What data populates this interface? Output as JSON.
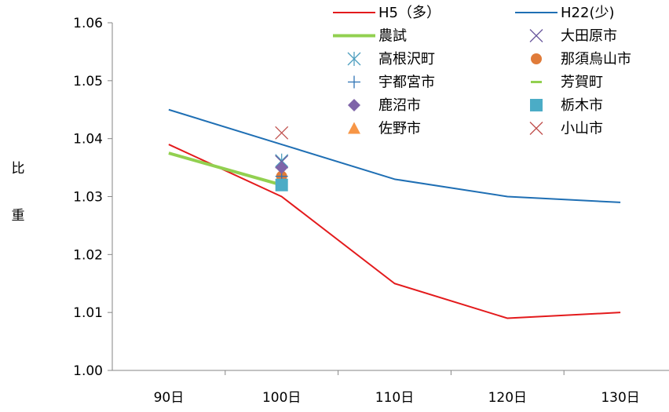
{
  "chart_data": {
    "type": "line",
    "categories": [
      "90日",
      "100日",
      "110日",
      "120日",
      "130日"
    ],
    "ylabel_chars": [
      "比",
      "重"
    ],
    "ylim": [
      1.0,
      1.06
    ],
    "yticks": [
      "1.00",
      "1.01",
      "1.02",
      "1.03",
      "1.04",
      "1.05",
      "1.06"
    ],
    "grid": false,
    "legend_position": "top-right",
    "series": [
      {
        "name": "H5（多）",
        "kind": "line",
        "color": "#e31a1c",
        "values": [
          1.039,
          1.03,
          1.015,
          1.009,
          1.01
        ]
      },
      {
        "name": "H22(少)",
        "kind": "line",
        "color": "#1f6fb4",
        "values": [
          1.045,
          1.039,
          1.033,
          1.03,
          1.029
        ]
      },
      {
        "name": "農試",
        "kind": "line",
        "color": "#92d050",
        "values": [
          1.0375,
          1.032,
          null,
          null,
          null
        ]
      },
      {
        "name": "大田原市",
        "kind": "marker",
        "marker": "x",
        "color": "#6b5a9e",
        "x": "100日",
        "y": 1.036
      },
      {
        "name": "高根沢町",
        "kind": "marker",
        "marker": "asterisk",
        "color": "#4f9fbf",
        "x": "100日",
        "y": 1.0362
      },
      {
        "name": "那須烏山市",
        "kind": "marker",
        "marker": "circle",
        "color": "#e07b39",
        "x": "100日",
        "y": 1.0335
      },
      {
        "name": "宇都宮市",
        "kind": "marker",
        "marker": "plus",
        "color": "#2f74b5",
        "x": "100日",
        "y": 1.0335
      },
      {
        "name": "芳賀町",
        "kind": "marker",
        "marker": "dash",
        "color": "#92d050",
        "x": "100日",
        "y": 1.0325
      },
      {
        "name": "鹿沼市",
        "kind": "marker",
        "marker": "diamond",
        "color": "#7f64a8",
        "x": "100日",
        "y": 1.035
      },
      {
        "name": "栃木市",
        "kind": "marker",
        "marker": "square",
        "color": "#4bacc6",
        "x": "100日",
        "y": 1.032
      },
      {
        "name": "佐野市",
        "kind": "marker",
        "marker": "triangle",
        "color": "#f79646",
        "x": "100日",
        "y": 1.0335
      },
      {
        "name": "小山市",
        "kind": "marker",
        "marker": "x",
        "color": "#c0504d",
        "x": "100日",
        "y": 1.041
      }
    ]
  }
}
